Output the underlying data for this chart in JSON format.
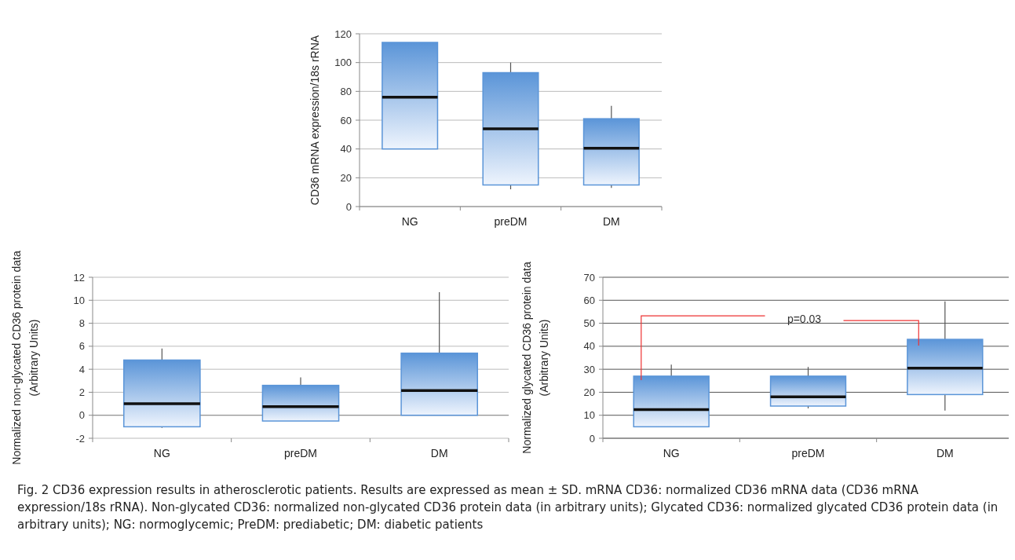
{
  "chart_data": [
    {
      "type": "box",
      "ylabel": "CD36 mRNA  expression/18s rRNA",
      "categories": [
        "NG",
        "preDM",
        "DM"
      ],
      "color": "#5b95d8",
      "ylim": [
        0,
        120
      ],
      "yticks": [
        0,
        20,
        40,
        60,
        80,
        100,
        120
      ],
      "grid": "y",
      "boxes": [
        {
          "low": 40,
          "q1": 40,
          "median": 76,
          "q3": 114,
          "high": 114
        },
        {
          "low": 12,
          "q1": 15,
          "median": 54,
          "q3": 93,
          "high": 100
        },
        {
          "low": 13,
          "q1": 15,
          "median": 40.5,
          "q3": 61,
          "high": 70
        }
      ],
      "annotations": [
        "Fig. 2  CD36 expression results in atherosclerotic patients. Results are expressed as mean ± SD. mRNA CD36: normalized CD36 mRNA data (CD36 mRNA expression/18s rRNA). Non-glycated CD36: normalized non-glycated CD36 protein data (in arbitrary units); Glycated CD36: normalized glycated CD36 protein data (in arbitrary units); NG: normoglycemic; PreDM: prediabetic; DM: diabetic patients"
      ]
    },
    {
      "type": "box",
      "ylabel": "Normalized  non-glycated CD36 protein data\n(Arbitrary Units)",
      "categories": [
        "NG",
        "preDM",
        "DM"
      ],
      "color": "#5b95d8",
      "ylim": [
        -2,
        12
      ],
      "yticks": [
        -2,
        0,
        2,
        4,
        6,
        8,
        10,
        12
      ],
      "grid": "y",
      "boxes": [
        {
          "low": -1.1,
          "q1": -1,
          "median": 1,
          "q3": 4.8,
          "high": 5.8
        },
        {
          "low": -0.5,
          "q1": -0.5,
          "median": 0.75,
          "q3": 2.6,
          "high": 3.3
        },
        {
          "low": 0,
          "q1": 0,
          "median": 2.15,
          "q3": 5.4,
          "high": 10.7
        }
      ]
    },
    {
      "type": "box",
      "ylabel": "Normalized  glycated CD36 protein data\n(Arbitrary Units)",
      "categories": [
        "NG",
        "preDM",
        "DM"
      ],
      "color": "#5b95d8",
      "ylim": [
        0,
        70
      ],
      "yticks": [
        0,
        10,
        20,
        30,
        40,
        50,
        60,
        70
      ],
      "grid": "y",
      "boxes": [
        {
          "low": 5,
          "q1": 5,
          "median": 12.5,
          "q3": 27,
          "high": 32
        },
        {
          "low": 13,
          "q1": 14,
          "median": 18,
          "q3": 27,
          "high": 31
        },
        {
          "low": 12,
          "q1": 19,
          "median": 30.5,
          "q3": 43,
          "high": 59.5
        }
      ],
      "annotations": [
        "p=0.03"
      ]
    }
  ]
}
